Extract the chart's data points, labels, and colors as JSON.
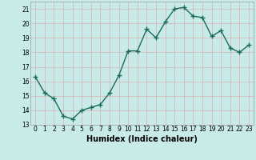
{
  "x": [
    0,
    1,
    2,
    3,
    4,
    5,
    6,
    7,
    8,
    9,
    10,
    11,
    12,
    13,
    14,
    15,
    16,
    17,
    18,
    19,
    20,
    21,
    22,
    23
  ],
  "y": [
    16.3,
    15.2,
    14.8,
    13.6,
    13.4,
    14.0,
    14.2,
    14.4,
    15.2,
    16.4,
    18.1,
    18.1,
    19.6,
    19.0,
    20.1,
    21.0,
    21.1,
    20.5,
    20.4,
    19.1,
    19.5,
    18.3,
    18.0,
    18.5
  ],
  "xlabel": "Humidex (Indice chaleur)",
  "xlim": [
    -0.5,
    23.5
  ],
  "ylim": [
    13,
    21.5
  ],
  "yticks": [
    13,
    14,
    15,
    16,
    17,
    18,
    19,
    20,
    21
  ],
  "xticks": [
    0,
    1,
    2,
    3,
    4,
    5,
    6,
    7,
    8,
    9,
    10,
    11,
    12,
    13,
    14,
    15,
    16,
    17,
    18,
    19,
    20,
    21,
    22,
    23
  ],
  "line_color": "#1a6b5a",
  "marker": "+",
  "marker_size": 4.0,
  "bg_color": "#c8eae8",
  "grid_color": "#d8b0b0",
  "tick_fontsize": 5.5,
  "xlabel_fontsize": 7,
  "line_width": 1.0
}
